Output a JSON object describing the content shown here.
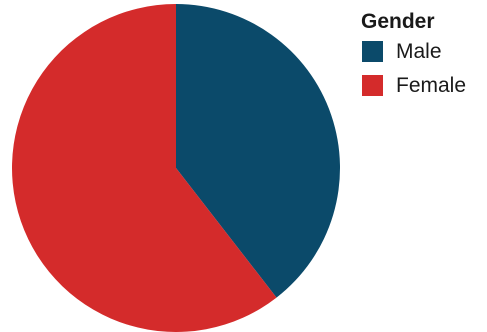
{
  "chart_data": {
    "type": "pie",
    "categories": [
      "Male",
      "Female"
    ],
    "values": [
      39.5,
      60.5
    ],
    "legend": {
      "title": "Gender",
      "placement": "top-right",
      "entries": [
        "Male",
        "Female"
      ]
    },
    "colors": {
      "Male": "#0b4a6a",
      "Female": "#d42b2b"
    }
  }
}
